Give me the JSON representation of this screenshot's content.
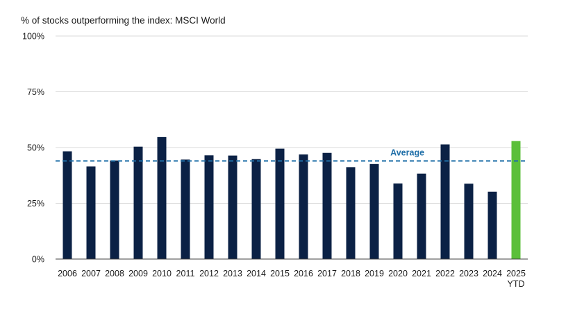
{
  "chart_data": {
    "type": "bar",
    "title": "% of stocks outperforming the index: MSCI World",
    "xlabel": "",
    "ylabel": "",
    "categories": [
      [
        "2006"
      ],
      [
        "2007"
      ],
      [
        "2008"
      ],
      [
        "2009"
      ],
      [
        "2010"
      ],
      [
        "2011"
      ],
      [
        "2012"
      ],
      [
        "2013"
      ],
      [
        "2014"
      ],
      [
        "2015"
      ],
      [
        "2016"
      ],
      [
        "2017"
      ],
      [
        "2018"
      ],
      [
        "2019"
      ],
      [
        "2020"
      ],
      [
        "2021"
      ],
      [
        "2022"
      ],
      [
        "2023"
      ],
      [
        "2024"
      ],
      [
        "2025",
        "YTD"
      ]
    ],
    "values": [
      48.3,
      41.5,
      44.2,
      50.4,
      54.7,
      44.6,
      46.5,
      46.4,
      44.8,
      49.5,
      46.9,
      47.6,
      41.2,
      42.6,
      33.9,
      38.3,
      51.4,
      33.8,
      30.2,
      52.9
    ],
    "ylim": [
      0,
      100
    ],
    "yticks": [
      0,
      25,
      50,
      75,
      100
    ],
    "ytick_labels": [
      "0%",
      "25%",
      "50%",
      "75%",
      "100%"
    ],
    "average": {
      "label": "Average",
      "value": 44
    },
    "grid": true,
    "colors": {
      "bar": "#0b2145",
      "highlight": "#5bbf3a",
      "average_line": "#1f6fa8",
      "grid": "#d9d9d9",
      "axis": "#404040"
    },
    "highlight_index": 19
  }
}
